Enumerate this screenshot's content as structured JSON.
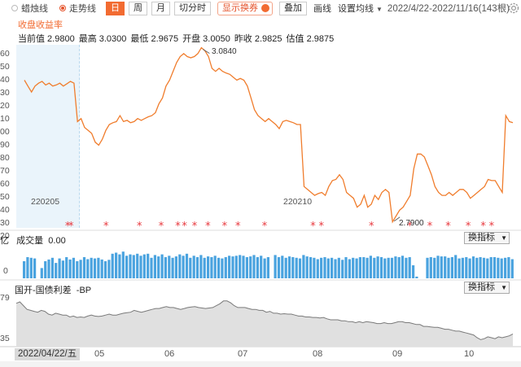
{
  "toolbar": {
    "candle_label": "蜡烛线",
    "trend_label": "走势线",
    "period_day": "日",
    "period_week": "周",
    "period_month": "月",
    "minute_label": "切分时",
    "show_swap_label": "显示换券",
    "overlay_label": "叠加",
    "draw_label": "画线",
    "ma_label": "设置均线",
    "date_range": "2022/4/22-2022/11/16(143根)"
  },
  "chart_title": "收盘收益率",
  "quote": {
    "prev_close": "当前值 2.9800",
    "high": "最高 3.0300",
    "low": "最低 2.9675",
    "open": "开盘 3.0050",
    "close": "昨收 2.9825",
    "est": "估值 2.9875"
  },
  "annotations": {
    "max": "3.0840",
    "min": "2.7900",
    "mark1": "220205",
    "mark2": "220210"
  },
  "y_labels": [
    "60",
    "50",
    "40",
    "30",
    "20",
    "10",
    "00",
    "90",
    "80",
    "70",
    "60",
    "50",
    "40",
    "30",
    "20"
  ],
  "volume": {
    "label": "成交量",
    "value": "0.00",
    "unit": "亿",
    "zero": "0"
  },
  "spread": {
    "label": "国开-国债利差",
    "value": "-BP",
    "top": "79",
    "bottom": "35"
  },
  "indicator_button": "换指标",
  "x_axis": {
    "first": "2022/04/22/五",
    "months": [
      "05",
      "06",
      "07",
      "08",
      "09",
      "10"
    ]
  },
  "colors": {
    "accent": "#f26b31",
    "line": "#f07d2d",
    "bar": "#4aa3df",
    "marker": "#e8383d"
  },
  "chart_data": {
    "type": "line",
    "title": "收盘收益率",
    "series": [
      {
        "values": [
          3.03,
          3.02,
          3.01,
          3.02,
          3.025,
          3.028,
          3.022,
          3.025,
          3.02,
          3.022,
          3.025,
          3.02,
          3.024,
          3.028,
          3.025,
          2.96,
          2.965,
          2.95,
          2.945,
          2.94,
          2.925,
          2.92,
          2.93,
          2.945,
          2.955,
          2.958,
          2.96,
          2.97,
          2.96,
          2.962,
          2.958,
          2.96,
          2.965,
          2.962,
          2.965,
          2.968,
          2.97,
          2.975,
          2.99,
          3.0,
          3.02,
          3.03,
          3.045,
          3.06,
          3.07,
          3.075,
          3.07,
          3.068,
          3.07,
          3.075,
          3.085,
          3.08,
          3.07,
          3.05,
          3.045,
          3.05,
          3.045,
          3.042,
          3.04,
          3.035,
          3.03,
          3.033,
          3.03,
          3.02,
          3.0,
          2.98,
          2.97,
          2.965,
          2.96,
          2.965,
          2.96,
          2.955,
          2.948,
          2.96,
          2.962,
          2.96,
          2.958,
          2.955,
          2.955,
          2.85,
          2.845,
          2.84,
          2.835,
          2.838,
          2.84,
          2.835,
          2.85,
          2.86,
          2.862,
          2.87,
          2.862,
          2.84,
          2.835,
          2.83,
          2.815,
          2.82,
          2.835,
          2.815,
          2.82,
          2.835,
          2.828,
          2.84,
          2.845,
          2.84,
          2.79,
          2.8,
          2.81,
          2.815,
          2.825,
          2.835,
          2.88,
          2.905,
          2.905,
          2.9,
          2.885,
          2.87,
          2.85,
          2.84,
          2.835,
          2.835,
          2.84,
          2.835,
          2.84,
          2.845,
          2.845,
          2.84,
          2.83,
          2.835,
          2.84,
          2.845,
          2.85,
          2.862,
          2.86,
          2.86,
          2.85,
          2.84,
          2.97,
          2.96,
          2.958
        ]
      },
      {
        "values": [
          0.5,
          0.62,
          0.6,
          0.58,
          0.0,
          0.3,
          0.5,
          0.55,
          0.6,
          0.45,
          0.58,
          0.52,
          0.62,
          0.55,
          0.6,
          0.5,
          0.54,
          0.62,
          0.56,
          0.6,
          0.58,
          0.6,
          0.55,
          0.5,
          0.54,
          0.72,
          0.75,
          0.7,
          0.78,
          0.66,
          0.7,
          0.68,
          0.72,
          0.66,
          0.7,
          0.72,
          0.6,
          0.68,
          0.64,
          0.7,
          0.62,
          0.66,
          0.6,
          0.64,
          0.7,
          0.66,
          0.72,
          0.6,
          0.66,
          0.62,
          0.68,
          0.6,
          0.64,
          0.62,
          0.66,
          0.6,
          0.58,
          0.62,
          0.66,
          0.64,
          0.66,
          0.68,
          0.66,
          0.62,
          0.64,
          0.68,
          0.62,
          0.66,
          0.58,
          0.62,
          0.0,
          0.68,
          0.62,
          0.66,
          0.6,
          0.64,
          0.62,
          0.6,
          0.58,
          0.68,
          0.64,
          0.62,
          0.6,
          0.56,
          0.6,
          0.62,
          0.58,
          0.6,
          0.56,
          0.6,
          0.54,
          0.62,
          0.56,
          0.6,
          0.58,
          0.62,
          0.62,
          0.6,
          0.66,
          0.6,
          0.64,
          0.62,
          0.58,
          0.6,
          0.6,
          0.64,
          0.62,
          0.66,
          0.6,
          0.62,
          0.38,
          0.05,
          0.0,
          0.0,
          0.6,
          0.62,
          0.6,
          0.66,
          0.64,
          0.64,
          0.6,
          0.62,
          0.68,
          0.58,
          0.6,
          0.62,
          0.58,
          0.64,
          0.6,
          0.62,
          0.6,
          0.58,
          0.62,
          0.62,
          0.6,
          0.58,
          0.6,
          0.62,
          0.56
        ]
      },
      {
        "values": [
          0.85,
          0.88,
          0.8,
          0.72,
          0.7,
          0.68,
          0.66,
          0.7,
          0.68,
          0.62,
          0.6,
          0.64,
          0.62,
          0.6,
          0.6,
          0.56,
          0.58,
          0.55,
          0.56,
          0.55,
          0.58,
          0.6,
          0.58,
          0.57,
          0.58,
          0.6,
          0.62,
          0.6,
          0.6,
          0.62,
          0.64,
          0.65,
          0.66,
          0.7,
          0.68,
          0.66,
          0.68,
          0.7,
          0.72,
          0.74,
          0.74,
          0.76,
          0.78,
          0.76,
          0.76,
          0.74,
          0.72,
          0.74,
          0.76,
          0.77,
          0.78,
          0.76,
          0.75,
          0.74,
          0.75,
          0.76,
          0.8,
          0.84,
          0.9,
          0.9,
          0.86,
          0.8,
          0.76,
          0.76,
          0.76,
          0.74,
          0.72,
          0.72,
          0.7,
          0.7,
          0.66,
          0.68,
          0.64,
          0.64,
          0.62,
          0.63,
          0.62,
          0.62,
          0.6,
          0.58,
          0.58,
          0.56,
          0.56,
          0.55,
          0.55,
          0.54,
          0.55,
          0.52,
          0.5,
          0.5,
          0.5,
          0.48,
          0.48,
          0.46,
          0.46,
          0.44,
          0.46,
          0.44,
          0.46,
          0.45,
          0.44,
          0.42,
          0.42,
          0.44,
          0.42,
          0.42,
          0.44,
          0.46,
          0.46,
          0.44,
          0.44,
          0.42,
          0.4,
          0.4,
          0.36,
          0.36,
          0.35,
          0.34,
          0.34,
          0.32,
          0.3,
          0.3,
          0.28,
          0.26,
          0.26,
          0.24,
          0.22,
          0.2,
          0.18,
          0.12,
          0.08,
          0.1,
          0.14,
          0.12,
          0.1,
          0.14,
          0.12,
          0.14,
          0.16,
          0.2
        ]
      }
    ],
    "marker_indices": [
      38,
      40,
      61,
      81,
      94,
      104,
      108,
      114,
      122,
      132,
      140,
      156,
      185,
      190,
      220,
      243,
      255,
      266,
      278,
      287,
      292
    ]
  }
}
